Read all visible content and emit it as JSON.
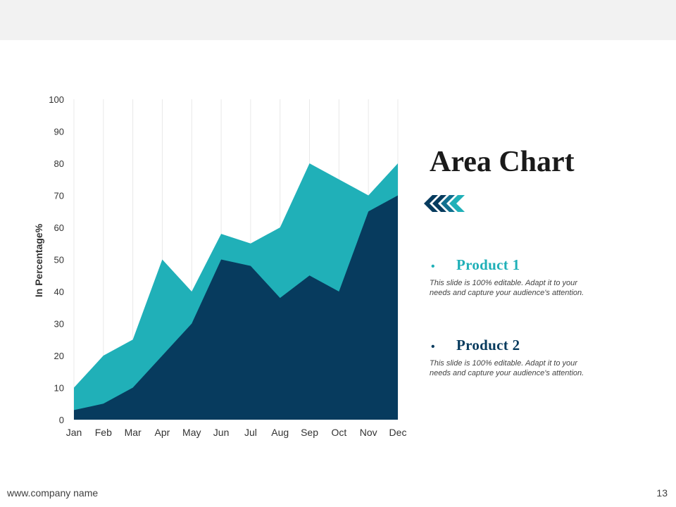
{
  "slide": {
    "title": "Area Chart",
    "footer_url": "www.company name",
    "page_number": "13"
  },
  "colors": {
    "product1": "#20b0b8",
    "product2": "#073b5e",
    "gridline": "#e8e8e8",
    "top_band": "#f2f2f2"
  },
  "chart_data": {
    "type": "area",
    "title": "",
    "xlabel": "",
    "ylabel": "In Percentage%",
    "categories": [
      "Jan",
      "Feb",
      "Mar",
      "Apr",
      "May",
      "Jun",
      "Jul",
      "Aug",
      "Sep",
      "Oct",
      "Nov",
      "Dec"
    ],
    "ylim": [
      0,
      100
    ],
    "yticks": [
      0,
      10,
      20,
      30,
      40,
      50,
      60,
      70,
      80,
      90,
      100
    ],
    "grid": "vertical",
    "legend_position": "right",
    "series": [
      {
        "name": "Product 1",
        "values": [
          10,
          20,
          25,
          50,
          40,
          58,
          55,
          60,
          80,
          75,
          70,
          80
        ]
      },
      {
        "name": "Product 2",
        "values": [
          3,
          5,
          10,
          20,
          30,
          50,
          48,
          38,
          45,
          40,
          65,
          70
        ]
      }
    ]
  },
  "legend": [
    {
      "bullet": "•",
      "name": "Product 1",
      "description": "This slide is 100% editable. Adapt it to your needs and capture your audience's attention."
    },
    {
      "bullet": "•",
      "name": "Product 2",
      "description": "This slide is 100% editable. Adapt it to your needs and capture your audience's attention."
    }
  ]
}
